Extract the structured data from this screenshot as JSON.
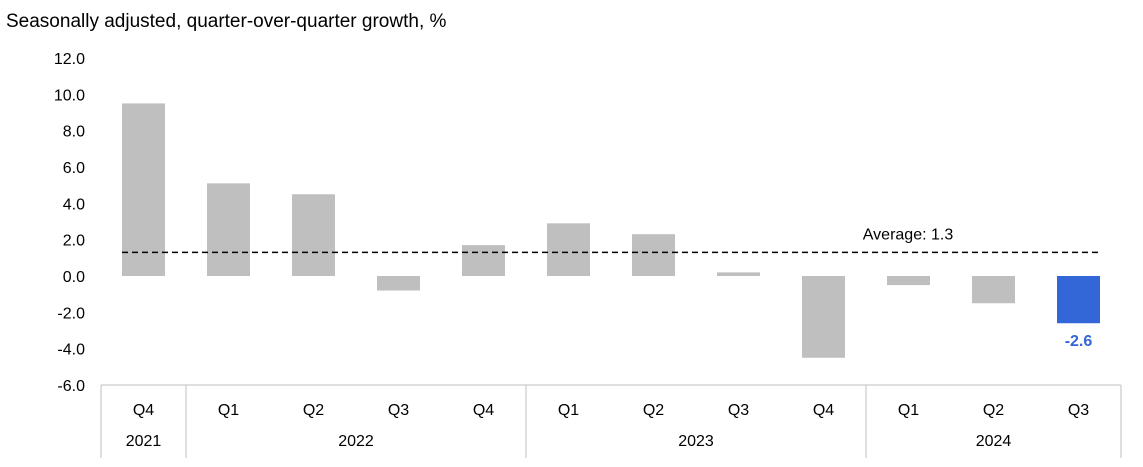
{
  "chart_data": {
    "type": "bar",
    "subtitle": "Seasonally adjusted, quarter-over-quarter growth, %",
    "categories": [
      "Q4",
      "Q1",
      "Q2",
      "Q3",
      "Q4",
      "Q1",
      "Q2",
      "Q3",
      "Q4",
      "Q1",
      "Q2",
      "Q3"
    ],
    "year_groups": [
      {
        "label": "2021",
        "count": 1
      },
      {
        "label": "2022",
        "count": 4
      },
      {
        "label": "2023",
        "count": 4
      },
      {
        "label": "2024",
        "count": 3
      }
    ],
    "values": [
      9.5,
      5.1,
      4.5,
      -0.8,
      1.7,
      2.9,
      2.3,
      0.2,
      -4.5,
      -0.5,
      -1.5,
      -2.6
    ],
    "ylim": [
      -6.0,
      12.0
    ],
    "yticks": [
      12.0,
      10.0,
      8.0,
      6.0,
      4.0,
      2.0,
      0.0,
      -2.0,
      -4.0,
      -6.0
    ],
    "average": {
      "value": 1.3,
      "label": "Average:  1.3"
    },
    "highlight": {
      "index": 11,
      "label": "-2.6"
    },
    "grid": false,
    "colors": {
      "bar": "#bfbfbf",
      "highlight": "#3366d6",
      "highlight_label": "#3366d6",
      "axis": "#bfbfbf"
    }
  }
}
